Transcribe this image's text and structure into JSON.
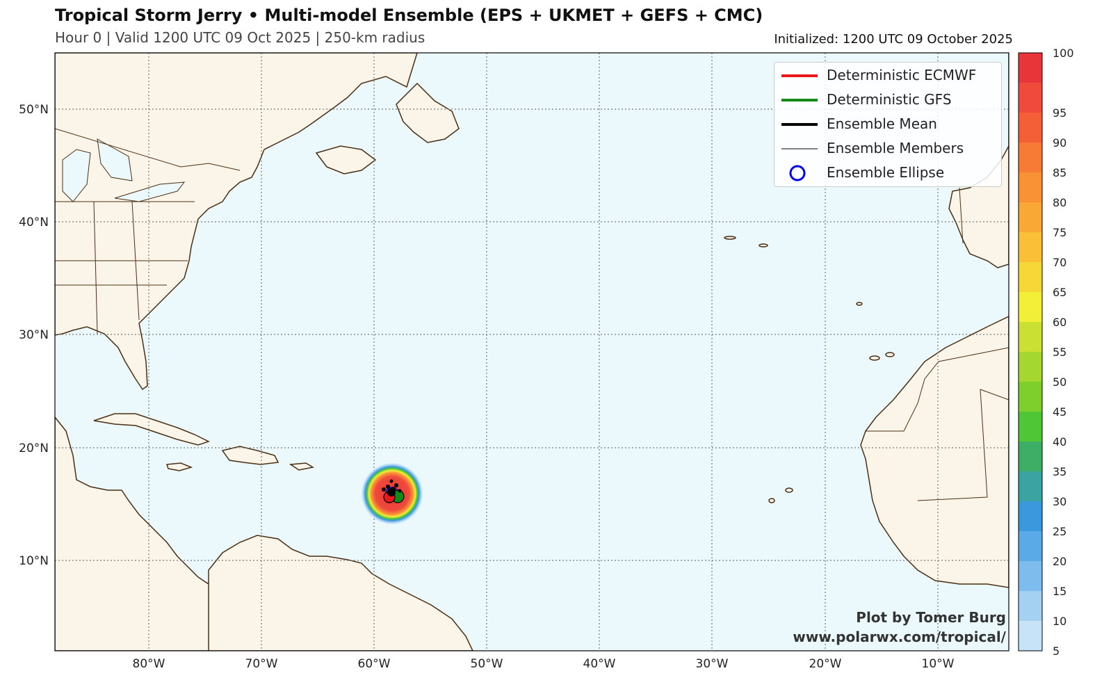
{
  "header": {
    "title": "Tropical Storm Jerry • Multi-model Ensemble (EPS + UKMET + GEFS + CMC)",
    "subtitle": "Hour 0 | Valid 1200 UTC 09 Oct 2025 | 250-km radius",
    "initialized": "Initialized: 1200 UTC 09 October 2025"
  },
  "map": {
    "lon_ticks": [
      "80°W",
      "70°W",
      "60°W",
      "50°W",
      "40°W",
      "30°W",
      "20°W",
      "10°W"
    ],
    "lat_ticks": [
      "50°N",
      "40°N",
      "30°N",
      "20°N",
      "10°N"
    ],
    "ocean_color": "#ebf9fc",
    "land_color": "#fbf4e8",
    "coast_color": "#4a2e12",
    "storm_center": {
      "lat": 15.8,
      "lon": -58.3,
      "probability_max": 100
    }
  },
  "legend": {
    "items": [
      {
        "label": "Deterministic ECMWF",
        "color": "#e8171b",
        "style": "thick-line"
      },
      {
        "label": "Deterministic GFS",
        "color": "#118a1a",
        "style": "thick-line"
      },
      {
        "label": "Ensemble Mean",
        "color": "#000000",
        "style": "thick-line"
      },
      {
        "label": "Ensemble Members",
        "color": "#000000",
        "style": "thin-line"
      },
      {
        "label": "Ensemble Ellipse",
        "color": "#0000ee",
        "style": "circle"
      }
    ]
  },
  "colorbar": {
    "labels": [
      "100",
      "95",
      "90",
      "85",
      "80",
      "75",
      "70",
      "65",
      "60",
      "55",
      "50",
      "45",
      "40",
      "35",
      "30",
      "25",
      "20",
      "15",
      "10",
      "5"
    ],
    "colors": [
      "#e8353a",
      "#ef4a3c",
      "#f45f38",
      "#f77a35",
      "#f99235",
      "#f9a836",
      "#f8bf37",
      "#f5d737",
      "#f1ef38",
      "#cae032",
      "#a4d730",
      "#7ece2c",
      "#4ec635",
      "#3eae66",
      "#3ba4a2",
      "#3b98dd",
      "#5aaae8",
      "#7dbcec",
      "#a4d0f2",
      "#c6e3f7"
    ]
  },
  "credit": {
    "line1": "Plot by Tomer Burg",
    "line2": "www.polarwx.com/tropical/"
  }
}
